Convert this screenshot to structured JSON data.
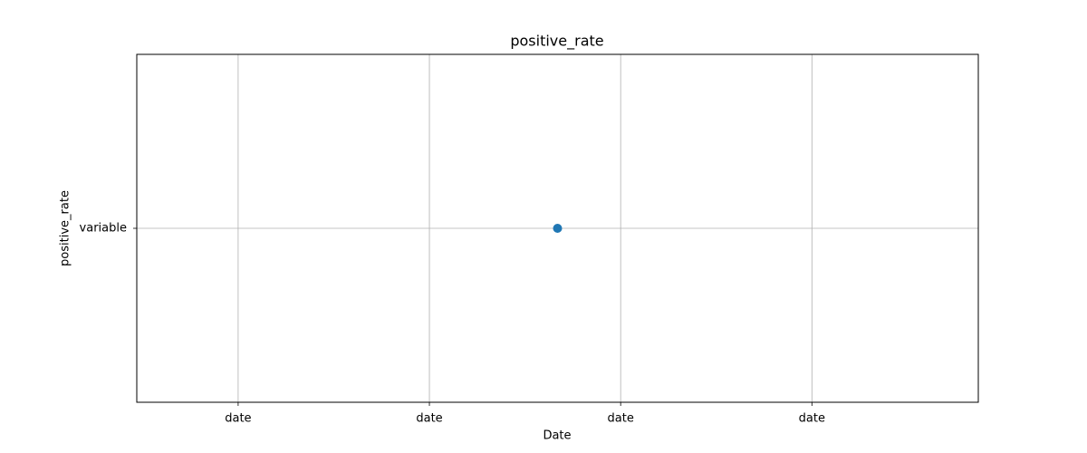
{
  "chart_data": {
    "type": "scatter",
    "title": "positive_rate",
    "xlabel": "Date",
    "ylabel": "positive_rate",
    "x": [
      2.67
    ],
    "values": [
      0
    ],
    "color": "#1f77b4",
    "xlim": [
      0.47,
      4.87
    ],
    "xticks": [
      {
        "value": 1,
        "label": "date"
      },
      {
        "value": 2,
        "label": "date"
      },
      {
        "value": 3,
        "label": "date"
      },
      {
        "value": 4,
        "label": "date"
      }
    ],
    "ylim": [
      -1,
      1
    ],
    "yticks": [
      {
        "value": 0,
        "label": "variable"
      }
    ],
    "grid": true
  }
}
